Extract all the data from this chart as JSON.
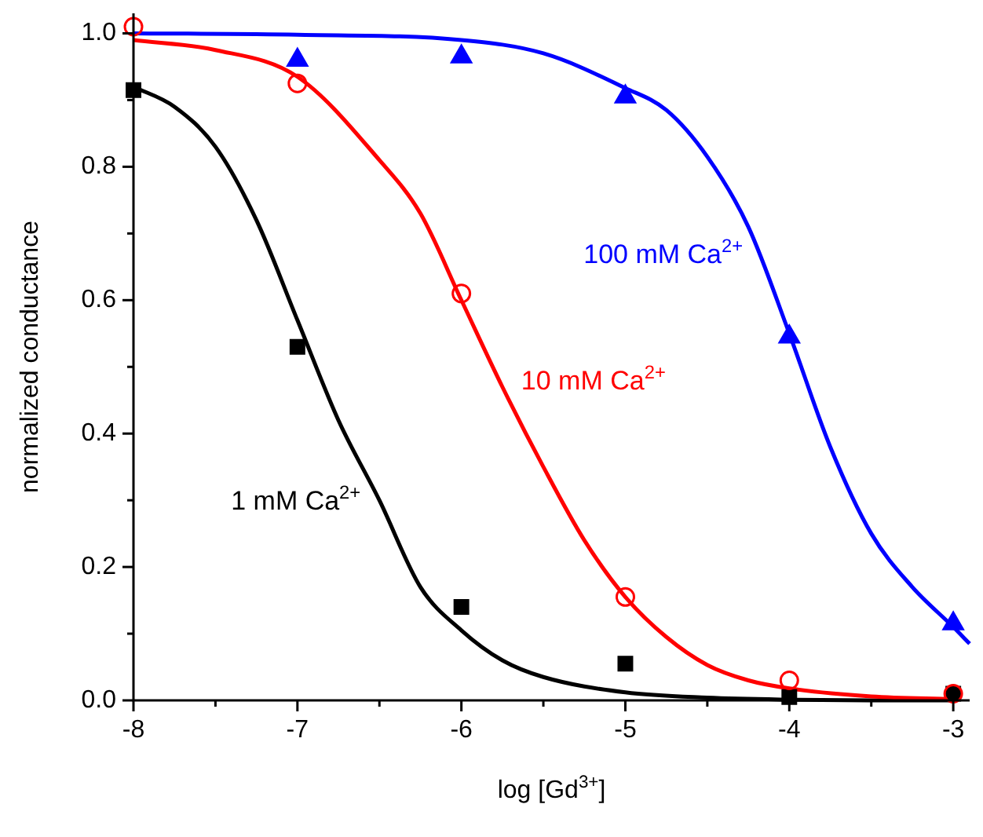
{
  "chart_data": {
    "type": "scatter",
    "xlabel": "log [Gd$^{3+}$]",
    "ylabel": "normalized conductance",
    "xlim": [
      -8,
      -2.9
    ],
    "ylim": [
      0,
      1.03
    ],
    "xticks": [
      -8,
      {
        "value": -7.5,
        "label": null
      },
      -7,
      {
        "value": -6.5,
        "label": null
      },
      -6,
      {
        "value": -5.5,
        "label": null
      },
      -5,
      {
        "value": -4.5,
        "label": null
      },
      -4,
      {
        "value": -3.5,
        "label": null
      },
      -3
    ],
    "yticks": [
      {
        "value": 0,
        "label": "0.0"
      },
      {
        "value": 0.1,
        "label": null
      },
      {
        "value": 0.2,
        "label": "0.2"
      },
      {
        "value": 0.3,
        "label": null
      },
      {
        "value": 0.4,
        "label": "0.4"
      },
      {
        "value": 0.5,
        "label": null
      },
      {
        "value": 0.6,
        "label": "0.6"
      },
      {
        "value": 0.7,
        "label": null
      },
      {
        "value": 0.8,
        "label": "0.8"
      },
      {
        "value": 0.9,
        "label": null
      },
      {
        "value": 1,
        "label": "1.0"
      }
    ],
    "grid": false,
    "legend": false,
    "series": [
      {
        "name": "1 mM Ca$^{2+}$",
        "color": "#000000",
        "marker": "square",
        "x": [
          -8,
          -7,
          -6,
          -5,
          -4,
          -3
        ],
        "values": [
          0.915,
          0.53,
          0.14,
          0.055,
          0.005,
          0.01
        ]
      },
      {
        "type": "line",
        "color": "#000000",
        "marker": "none",
        "x": [
          -8,
          -7.75,
          -7.5,
          -7.25,
          -7,
          -6.75,
          -6.5,
          -6.25,
          -6,
          -5.75,
          -5.5,
          -5,
          -4.5,
          -4,
          -3.5,
          -3
        ],
        "values": [
          0.92,
          0.89,
          0.83,
          0.72,
          0.57,
          0.42,
          0.3,
          0.17,
          0.105,
          0.06,
          0.035,
          0.012,
          0.004,
          0.001,
          0,
          0
        ]
      },
      {
        "name": "10 mM Ca$^{2+}$",
        "color": "#ff0000",
        "marker": "circle",
        "x": [
          -8,
          -7,
          -6,
          -5,
          -4,
          -3
        ],
        "values": [
          1.01,
          0.925,
          0.61,
          0.155,
          0.03,
          0.01
        ]
      },
      {
        "type": "line",
        "color": "#ff0000",
        "marker": "none",
        "x": [
          -8,
          -7.5,
          -7,
          -6.5,
          -6.25,
          -6,
          -5.75,
          -5.5,
          -5.25,
          -5,
          -4.75,
          -4.5,
          -4.25,
          -4,
          -3.5,
          -3
        ],
        "values": [
          0.99,
          0.975,
          0.935,
          0.81,
          0.73,
          0.6,
          0.47,
          0.35,
          0.24,
          0.155,
          0.095,
          0.053,
          0.03,
          0.018,
          0.006,
          0.002
        ]
      },
      {
        "name": "100 mM Ca$^{2+}$",
        "color": "#0000ff",
        "marker": "triangle",
        "x": [
          -7,
          -6,
          -5,
          -4,
          -3
        ],
        "values": [
          0.96,
          0.965,
          0.905,
          0.545,
          0.115
        ]
      },
      {
        "type": "line",
        "color": "#0000ff",
        "marker": "none",
        "x": [
          -8,
          -7,
          -6,
          -5.5,
          -5,
          -4.75,
          -4.5,
          -4.25,
          -4,
          -3.75,
          -3.5,
          -3.25,
          -3,
          -2.9
        ],
        "values": [
          1,
          0.998,
          0.99,
          0.97,
          0.918,
          0.885,
          0.815,
          0.71,
          0.55,
          0.38,
          0.25,
          0.17,
          0.11,
          0.085
        ]
      }
    ]
  }
}
